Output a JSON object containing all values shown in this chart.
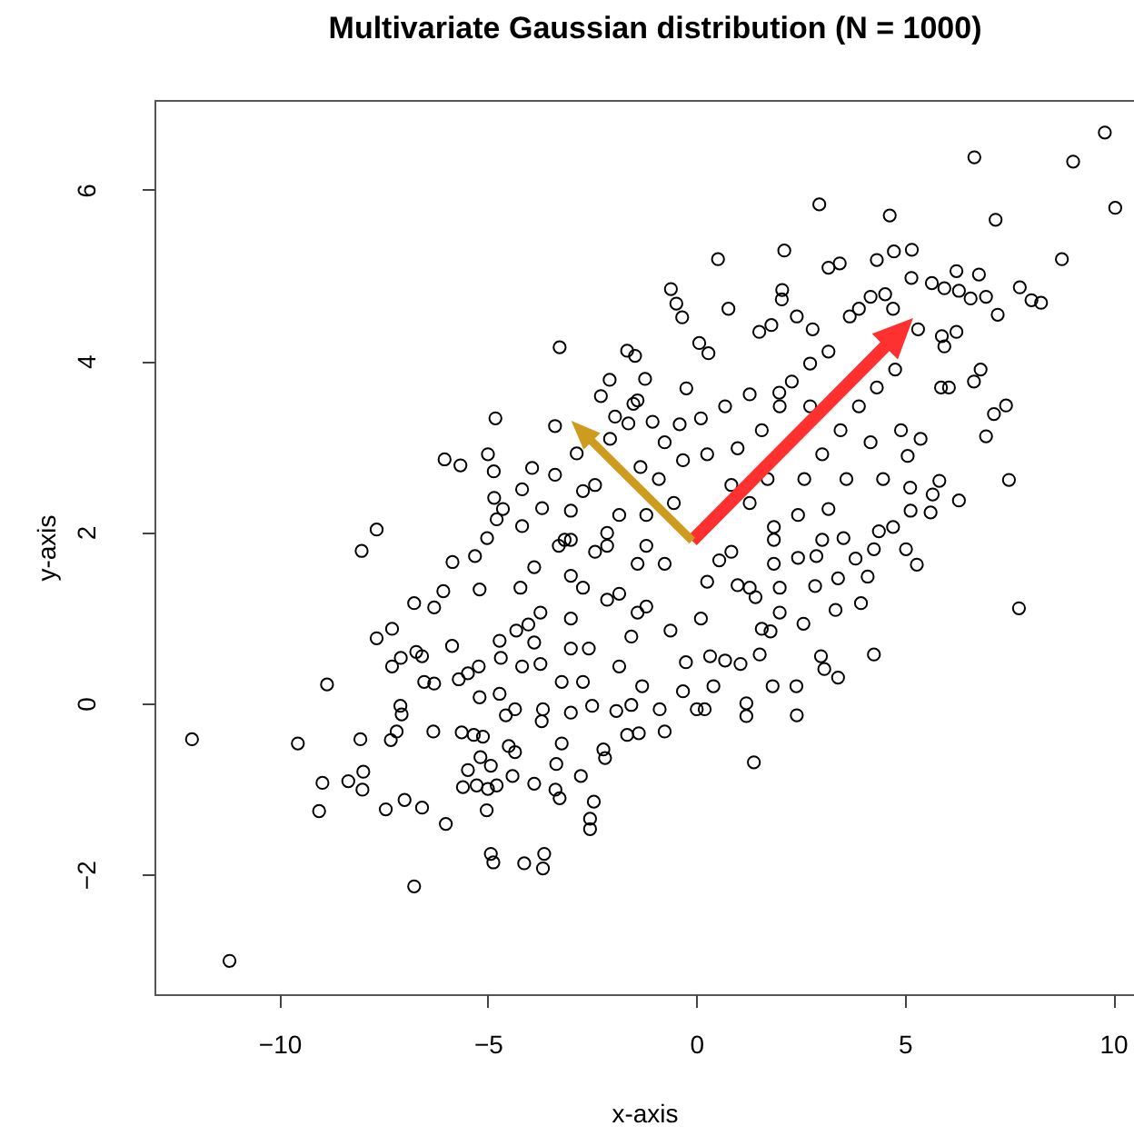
{
  "chart_data": {
    "type": "scatter",
    "title": "Multivariate Gaussian distribution (N = 1000)",
    "xlabel": "x-axis",
    "ylabel": "y-axis",
    "xlim": [
      -13,
      10.5
    ],
    "ylim": [
      -3.4,
      7.05
    ],
    "xticks": [
      -10,
      -5,
      0,
      5,
      10
    ],
    "yticks": [
      -2,
      0,
      2,
      4,
      6
    ],
    "grid": false,
    "marker": "circle",
    "series": [
      {
        "color": "#000000",
        "x": [
          -3.28,
          -1.66,
          -1.47,
          -2.08,
          -2.29,
          -1.51,
          -4.82,
          -3.39,
          -1.95,
          -6.04,
          -5.66,
          -5.0,
          -4.86,
          -3.94,
          -2.87,
          -3.39,
          -4.18,
          -4.85,
          -4.64,
          -3.7,
          -4.79,
          -7.67,
          -4.18,
          -3.01,
          -2.43,
          -5.02,
          -2.07,
          -1.63,
          9.8,
          6.67,
          9.04,
          10.05,
          2.95,
          4.64,
          7.18,
          0.52,
          2.11,
          3.17,
          3.44,
          4.33,
          4.74,
          5.17,
          8.77,
          -0.61,
          -0.48,
          -0.34,
          2.06,
          2.05,
          0.77,
          2.41,
          5.16,
          5.65,
          5.95,
          6.24,
          6.78,
          6.3,
          6.58,
          6.95,
          7.76,
          8.04,
          8.27,
          7.23,
          4.18,
          4.53,
          3.9,
          3.68,
          1.8,
          4.72,
          5.32,
          5.89,
          6.24,
          5.95,
          6.82,
          6.66,
          5.87,
          6.06,
          7.43,
          7.14,
          6.95,
          7.5,
          6.3,
          5.83,
          5.67,
          5.62,
          5.14,
          5.13,
          5.07,
          5.38,
          4.72,
          4.38,
          1.99,
          -0.24,
          0.07,
          0.29,
          2.79,
          1.51,
          -12.1,
          -11.2,
          -9.56,
          -8.86,
          -8.03,
          -8.06,
          -8.97,
          -9.05,
          -8.35,
          -7.99,
          -8.01,
          -7.67,
          -7.3,
          -7.3,
          -7.09,
          -6.72,
          -6.58,
          -7.1,
          -7.07,
          -7.19,
          -7.33,
          -7.45,
          -7.0,
          -6.58,
          -6.01,
          -6.77,
          -6.53,
          -6.29,
          -6.77,
          -6.29,
          -6.07,
          -5.85,
          -5.7,
          -5.48,
          -5.22,
          -6.31,
          -5.63,
          -5.34,
          -5.12,
          -5.48,
          -5.6,
          -5.27,
          -5.0,
          -4.79,
          -5.03,
          -4.93,
          -4.87,
          -4.13,
          -3.65,
          -3.68,
          -5.18,
          -4.93,
          -4.41,
          -3.89,
          -3.38,
          -3.28,
          -2.77,
          -2.46,
          -2.55,
          -2.55,
          -3.36,
          -3.23,
          -2.19,
          -2.23,
          -5.31,
          -5.2,
          -5.86,
          -5.2,
          -4.72,
          -4.57,
          -4.35,
          -4.5,
          -4.35,
          -3.68,
          -3.71,
          -3.01,
          -2.5,
          -1.92,
          -1.56,
          -1.66,
          -1.38,
          -4.18,
          -3.74,
          -3.23,
          -2.72,
          -4.72,
          -4.69,
          -4.32,
          -4.03,
          -3.01,
          -2.14,
          -1.56,
          -2.58,
          -4.22,
          -3.89,
          -3.01,
          -2.43,
          -3.3,
          7.74,
          4.26,
          3.4,
          3.07,
          2.99,
          2.41,
          2.4,
          1.83,
          1.38,
          1.2,
          1.2,
          0.01,
          0.2,
          -0.76,
          -0.88,
          -0.25,
          0.33,
          0.69,
          1.06,
          1.52,
          0.41,
          -0.32,
          -1.3,
          2.57,
          3.34,
          3.95,
          4.11,
          5.03,
          5.29,
          4.26,
          2.85,
          3.4,
          3.82,
          3.53,
          2.88,
          1.57,
          1.78,
          2.0,
          1.42,
          0.99,
          0.55,
          1.86,
          -1.23,
          -1.41,
          -1.05,
          -0.76,
          -0.4,
          -1.34,
          -0.9,
          -0.32,
          -0.54,
          -1.2,
          0.11,
          0.69,
          1.28,
          0.26,
          0.99,
          1.57,
          2.0,
          2.29,
          2.73,
          3.17,
          2.73,
          1.71,
          1.28,
          0.84,
          2.59,
          3.02,
          3.46,
          3.9,
          4.33,
          4.77,
          4.18,
          3.6,
          3.17,
          2.44,
          4.48,
          4.91,
          1.86,
          -1.2,
          -0.76,
          0.26,
          0.84,
          1.28,
          1.86,
          2.44,
          3.02,
          -1.2,
          -0.62,
          0.11,
          2.0,
          -3.01,
          -2.14,
          -1.41,
          -2.72,
          -1.85,
          -3.74,
          -1.41,
          -3.01,
          -1.85,
          -3.89,
          -2.72,
          -1.85,
          -2.14,
          -3.16
        ],
        "values": [
          4.16,
          4.12,
          4.06,
          3.78,
          3.59,
          3.5,
          3.33,
          3.24,
          3.35,
          2.85,
          2.78,
          2.91,
          2.71,
          2.75,
          2.92,
          2.67,
          2.5,
          2.4,
          2.27,
          2.28,
          2.15,
          2.03,
          2.07,
          2.25,
          2.55,
          1.93,
          3.09,
          3.27,
          6.67,
          6.38,
          6.33,
          5.79,
          5.83,
          5.7,
          5.65,
          5.19,
          5.29,
          5.09,
          5.14,
          5.18,
          5.28,
          5.3,
          5.19,
          4.84,
          4.67,
          4.51,
          4.83,
          4.72,
          4.61,
          4.52,
          4.97,
          4.91,
          4.85,
          5.05,
          5.01,
          4.82,
          4.73,
          4.75,
          4.86,
          4.71,
          4.68,
          4.54,
          4.75,
          4.78,
          4.61,
          4.52,
          4.42,
          4.61,
          4.37,
          4.29,
          4.34,
          4.17,
          3.9,
          3.76,
          3.69,
          3.69,
          3.48,
          3.38,
          3.12,
          2.61,
          2.37,
          2.6,
          2.44,
          2.23,
          2.25,
          2.52,
          2.89,
          3.09,
          2.06,
          2.01,
          3.63,
          3.68,
          4.21,
          4.09,
          4.37,
          4.34,
          -0.42,
          -3.01,
          -0.47,
          0.22,
          1.78,
          -0.42,
          -0.93,
          -1.26,
          -0.91,
          -0.8,
          -1.01,
          0.76,
          0.87,
          0.43,
          0.53,
          0.6,
          0.55,
          -0.03,
          -0.13,
          -0.33,
          -0.43,
          -1.24,
          -1.13,
          -1.22,
          -1.41,
          -2.14,
          0.25,
          0.23,
          1.17,
          1.12,
          1.31,
          1.65,
          0.28,
          0.35,
          0.43,
          -0.33,
          -0.34,
          -0.37,
          -0.39,
          -0.78,
          -0.98,
          -0.96,
          -1.0,
          -0.96,
          -1.25,
          -1.76,
          -1.86,
          -1.87,
          -1.76,
          -1.93,
          -0.63,
          -0.73,
          -0.85,
          -0.94,
          -1.01,
          -1.11,
          -0.85,
          -1.15,
          -1.35,
          -1.47,
          -0.71,
          -0.47,
          -0.64,
          -0.54,
          1.72,
          1.33,
          0.67,
          0.07,
          0.11,
          -0.14,
          -0.07,
          -0.5,
          -0.57,
          -0.07,
          -0.21,
          -0.11,
          -0.03,
          -0.09,
          -0.02,
          -0.37,
          -0.35,
          0.43,
          0.46,
          0.25,
          0.25,
          0.73,
          0.53,
          0.85,
          0.92,
          0.99,
          1.21,
          0.78,
          0.64,
          1.35,
          1.59,
          1.49,
          1.77,
          1.84,
          1.11,
          0.57,
          0.3,
          0.4,
          0.55,
          -0.14,
          0.2,
          0.2,
          -0.69,
          0.0,
          -0.15,
          -0.07,
          -0.07,
          -0.33,
          -0.07,
          0.48,
          0.55,
          0.5,
          0.46,
          0.57,
          0.2,
          0.14,
          0.2,
          0.93,
          1.09,
          1.17,
          1.48,
          1.8,
          1.62,
          1.8,
          1.37,
          1.46,
          1.69,
          1.93,
          1.72,
          0.87,
          0.84,
          1.35,
          1.24,
          1.38,
          1.67,
          1.63,
          3.79,
          3.54,
          3.29,
          3.05,
          3.26,
          2.76,
          2.62,
          2.84,
          2.34,
          2.2,
          3.33,
          3.47,
          3.61,
          2.91,
          2.98,
          3.19,
          3.47,
          3.76,
          3.97,
          4.11,
          3.47,
          2.62,
          2.34,
          2.55,
          2.62,
          2.91,
          3.19,
          3.47,
          3.69,
          3.9,
          3.05,
          2.62,
          2.27,
          2.2,
          2.62,
          3.19,
          2.06,
          1.84,
          1.63,
          1.42,
          1.77,
          1.35,
          1.91,
          1.7,
          1.91,
          1.13,
          0.85,
          0.99,
          1.06,
          1.91,
          1.84,
          1.63,
          1.35,
          1.28,
          1.06,
          1.06,
          0.64,
          0.43,
          0.71,
          2.48,
          2.2,
          1.99,
          1.91
        ]
      }
    ]
  }
}
